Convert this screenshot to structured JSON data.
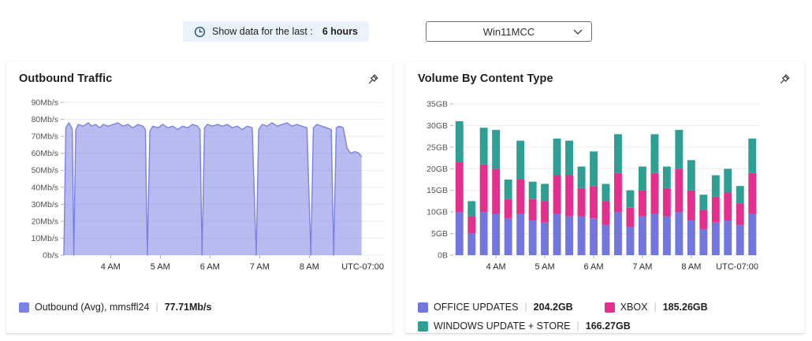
{
  "topbar": {
    "time_filter": {
      "prefix": "Show data for the last :",
      "value": "6 hours"
    },
    "server_dropdown": {
      "value": "Win11MCC"
    }
  },
  "ui": {
    "legend_separator": "|"
  },
  "chart_data": [
    {
      "type": "area",
      "title": "Outbound Traffic",
      "xlabel": "",
      "ylabel": "",
      "ylim": [
        0,
        90
      ],
      "grid": true,
      "legend_position": "bottom",
      "y_ticks": [
        "90Mb/s",
        "80Mb/s",
        "70Mb/s",
        "60Mb/s",
        "50Mb/s",
        "40Mb/s",
        "30Mb/s",
        "20Mb/s",
        "10Mb/s",
        "0b/s"
      ],
      "x_ticks": [
        {
          "label": "4 AM",
          "h": 4
        },
        {
          "label": "5 AM",
          "h": 5
        },
        {
          "label": "6 AM",
          "h": 6
        },
        {
          "label": "7 AM",
          "h": 7
        },
        {
          "label": "8 AM",
          "h": 8
        },
        {
          "label": "UTC-07:00",
          "h": "end"
        }
      ],
      "x_domain": [
        3.06,
        9.5
      ],
      "series": [
        {
          "name": "Outbound (Avg), mmsffl24",
          "avg_label": "77.71Mb/s",
          "unit": "Mb/s",
          "color": "#7b82e3",
          "fill": "rgba(123,131,226,0.55)",
          "points": [
            [
              3.06,
              0
            ],
            [
              3.1,
              75
            ],
            [
              3.16,
              78
            ],
            [
              3.2,
              76
            ],
            [
              3.23,
              74
            ],
            [
              3.26,
              0
            ],
            [
              3.3,
              74
            ],
            [
              3.35,
              77
            ],
            [
              3.45,
              76
            ],
            [
              3.55,
              78
            ],
            [
              3.62,
              76
            ],
            [
              3.7,
              77
            ],
            [
              3.78,
              75
            ],
            [
              3.85,
              77
            ],
            [
              3.95,
              76
            ],
            [
              4.05,
              77
            ],
            [
              4.15,
              78
            ],
            [
              4.25,
              76
            ],
            [
              4.35,
              77
            ],
            [
              4.45,
              75
            ],
            [
              4.55,
              77
            ],
            [
              4.65,
              76
            ],
            [
              4.7,
              74
            ],
            [
              4.74,
              0
            ],
            [
              4.79,
              73
            ],
            [
              4.85,
              76
            ],
            [
              4.95,
              75
            ],
            [
              5.05,
              77
            ],
            [
              5.15,
              75
            ],
            [
              5.25,
              76
            ],
            [
              5.35,
              74
            ],
            [
              5.45,
              76
            ],
            [
              5.55,
              75
            ],
            [
              5.65,
              77
            ],
            [
              5.75,
              76
            ],
            [
              5.8,
              74
            ],
            [
              5.84,
              0
            ],
            [
              5.89,
              75
            ],
            [
              5.95,
              77
            ],
            [
              6.05,
              76
            ],
            [
              6.15,
              77
            ],
            [
              6.25,
              76
            ],
            [
              6.35,
              77
            ],
            [
              6.45,
              75
            ],
            [
              6.55,
              76
            ],
            [
              6.65,
              74
            ],
            [
              6.75,
              76
            ],
            [
              6.85,
              75
            ],
            [
              6.93,
              0
            ],
            [
              6.98,
              74
            ],
            [
              7.05,
              77
            ],
            [
              7.15,
              76
            ],
            [
              7.25,
              78
            ],
            [
              7.35,
              76
            ],
            [
              7.45,
              77
            ],
            [
              7.55,
              78
            ],
            [
              7.65,
              76
            ],
            [
              7.75,
              77
            ],
            [
              7.85,
              76
            ],
            [
              7.95,
              75
            ],
            [
              8.03,
              0
            ],
            [
              8.08,
              75
            ],
            [
              8.15,
              77
            ],
            [
              8.25,
              76
            ],
            [
              8.35,
              75
            ],
            [
              8.44,
              74
            ],
            [
              8.49,
              0
            ],
            [
              8.54,
              75
            ],
            [
              8.6,
              76
            ],
            [
              8.68,
              75
            ],
            [
              8.76,
              63
            ],
            [
              8.83,
              60
            ],
            [
              8.92,
              61
            ],
            [
              9.0,
              60
            ],
            [
              9.05,
              58
            ]
          ]
        }
      ]
    },
    {
      "type": "bar",
      "stacked": true,
      "title": "Volume By Content Type",
      "xlabel": "",
      "ylabel": "",
      "ylim": [
        0,
        35
      ],
      "grid": true,
      "legend_position": "bottom",
      "y_ticks": [
        "35GB",
        "30GB",
        "25GB",
        "20GB",
        "15GB",
        "10GB",
        "5GB",
        "0B"
      ],
      "x_ticks": [
        {
          "label": "4 AM",
          "h": 4
        },
        {
          "label": "5 AM",
          "h": 5
        },
        {
          "label": "6 AM",
          "h": 6
        },
        {
          "label": "7 AM",
          "h": 7
        },
        {
          "label": "8 AM",
          "h": 8
        },
        {
          "label": "UTC-07:00",
          "h": "end"
        }
      ],
      "bar_start_hour": 3.25,
      "bar_interval_hours": 0.25,
      "unit": "GB",
      "series": [
        {
          "name": "OFFICE UPDATES",
          "total_label": "204.2GB",
          "color": "#7277dd",
          "values": [
            10,
            5,
            10,
            9.5,
            8.5,
            9.5,
            8,
            7.5,
            9.5,
            9,
            9,
            8.5,
            7,
            10,
            6.5,
            9,
            9.5,
            9,
            10,
            8,
            6,
            7.5,
            8,
            7,
            9.5
          ]
        },
        {
          "name": "XBOX",
          "total_label": "185.26GB",
          "color": "#e2308c",
          "values": [
            11.5,
            4,
            11,
            10.5,
            4.5,
            8,
            5,
            5,
            9,
            9.5,
            6.5,
            7.5,
            5.5,
            9,
            4.5,
            6,
            9.5,
            6.5,
            10,
            7,
            4.5,
            6,
            6.5,
            5,
            9.5
          ]
        },
        {
          "name": "WINDOWS UPDATE + STORE",
          "total_label": "166.27GB",
          "color": "#2f9e93",
          "values": [
            9.5,
            3.5,
            8.5,
            9,
            4.5,
            9,
            4,
            4,
            8.5,
            8,
            5,
            8,
            4,
            9,
            4,
            5.5,
            9,
            5,
            9,
            7,
            3.5,
            5,
            5.5,
            4,
            8
          ]
        }
      ]
    }
  ]
}
